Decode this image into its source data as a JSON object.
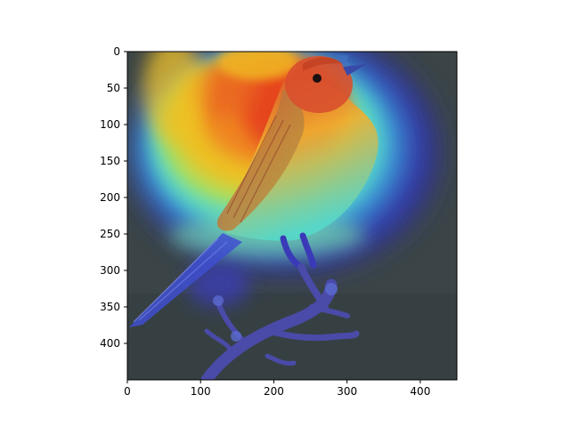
{
  "image": {
    "subject": "bird on branch",
    "overlay": "heatmap",
    "colormap": "jet",
    "colors": {
      "background": "#3a4446",
      "hot": "#e53a1f",
      "warm": "#f0c020",
      "mid": "#4fd8c0",
      "cool": "#3a3ad8"
    }
  },
  "axes": {
    "x_ticks": [
      "0",
      "100",
      "200",
      "300",
      "400"
    ],
    "y_ticks": [
      "0",
      "50",
      "100",
      "150",
      "200",
      "250",
      "300",
      "350",
      "400"
    ],
    "x_values": [
      0,
      100,
      200,
      300,
      400
    ],
    "y_values": [
      0,
      50,
      100,
      150,
      200,
      250,
      300,
      350,
      400
    ],
    "xlim": [
      0,
      450
    ],
    "ylim": [
      450,
      0
    ]
  }
}
